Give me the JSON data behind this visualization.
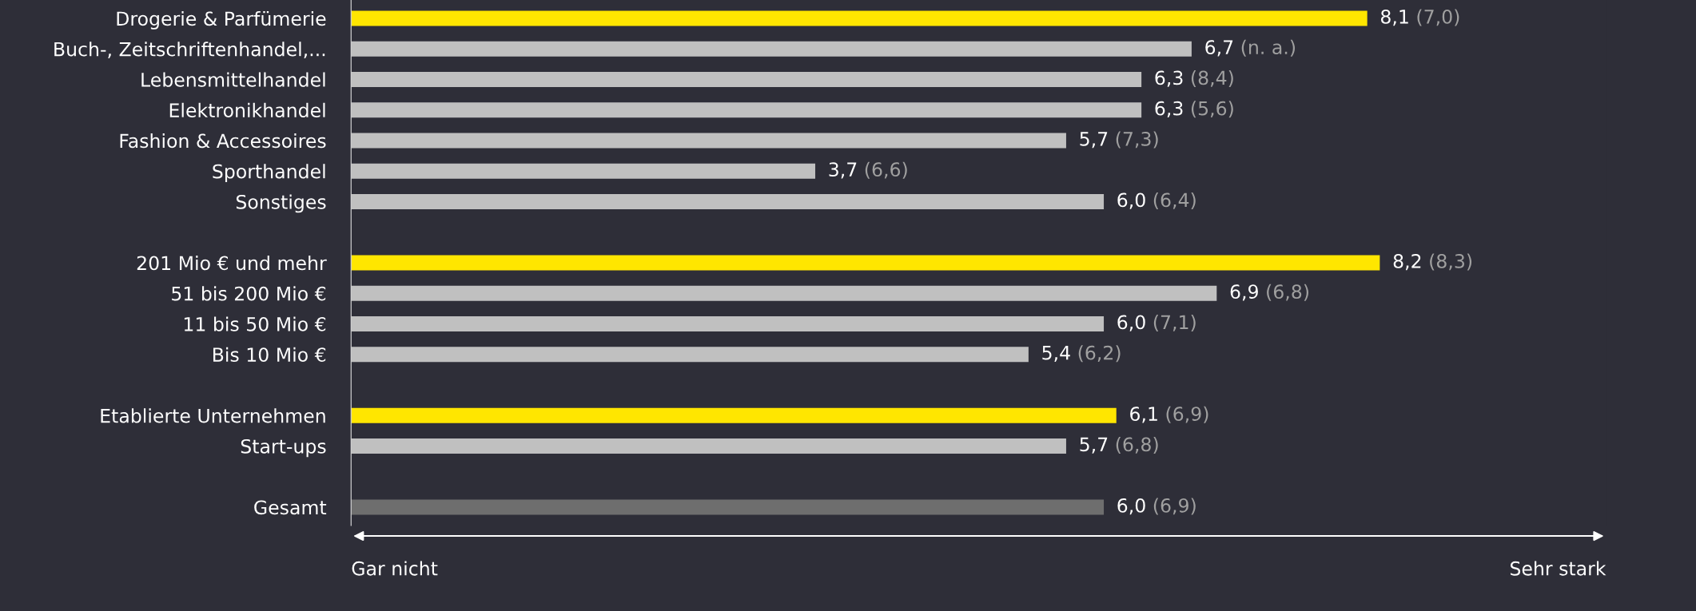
{
  "chart_data": {
    "type": "bar",
    "orientation": "horizontal",
    "categories": [
      "Drogerie & Parfümerie",
      "Buch-, Zeitschriftenhandel,...",
      "Lebensmittelhandel",
      "Elektronikhandel",
      "Fashion & Accessoires",
      "Sporthandel",
      "Sonstiges",
      null,
      "201 Mio € und mehr",
      "51 bis 200 Mio €",
      "11 bis 50 Mio €",
      "Bis 10 Mio €",
      null,
      "Etablierte Unternehmen",
      "Start-ups",
      null,
      "Gesamt"
    ],
    "values": [
      8.1,
      6.7,
      6.3,
      6.3,
      5.7,
      3.7,
      6.0,
      null,
      8.2,
      6.9,
      6.0,
      5.4,
      null,
      6.1,
      5.7,
      null,
      6.0
    ],
    "colors": [
      "#ffe600",
      "#c0c0c0",
      "#c0c0c0",
      "#c0c0c0",
      "#c0c0c0",
      "#c0c0c0",
      "#c0c0c0",
      null,
      "#ffe600",
      "#c0c0c0",
      "#c0c0c0",
      "#c0c0c0",
      null,
      "#ffe600",
      "#c0c0c0",
      null,
      "#6e6e6e"
    ],
    "value_labels": [
      "8,1 (7,0)",
      "6,7 (n. a.)",
      "6,3 (8,4)",
      "6,3 (5,6)",
      "5,7 (7,3)",
      "3,7 (6,6)",
      "6,0 (6,4)",
      null,
      "8,2 (8,3)",
      "6,9 (6,8)",
      "6,0 (7,1)",
      "5,4 (6,2)",
      null,
      "6,1 (6,9)",
      "5,7 (6,8)",
      null,
      "6,0 (6,9)"
    ],
    "annotations": [
      "Gar nicht",
      "Sehr stark"
    ],
    "grid": false,
    "legend": false
  }
}
